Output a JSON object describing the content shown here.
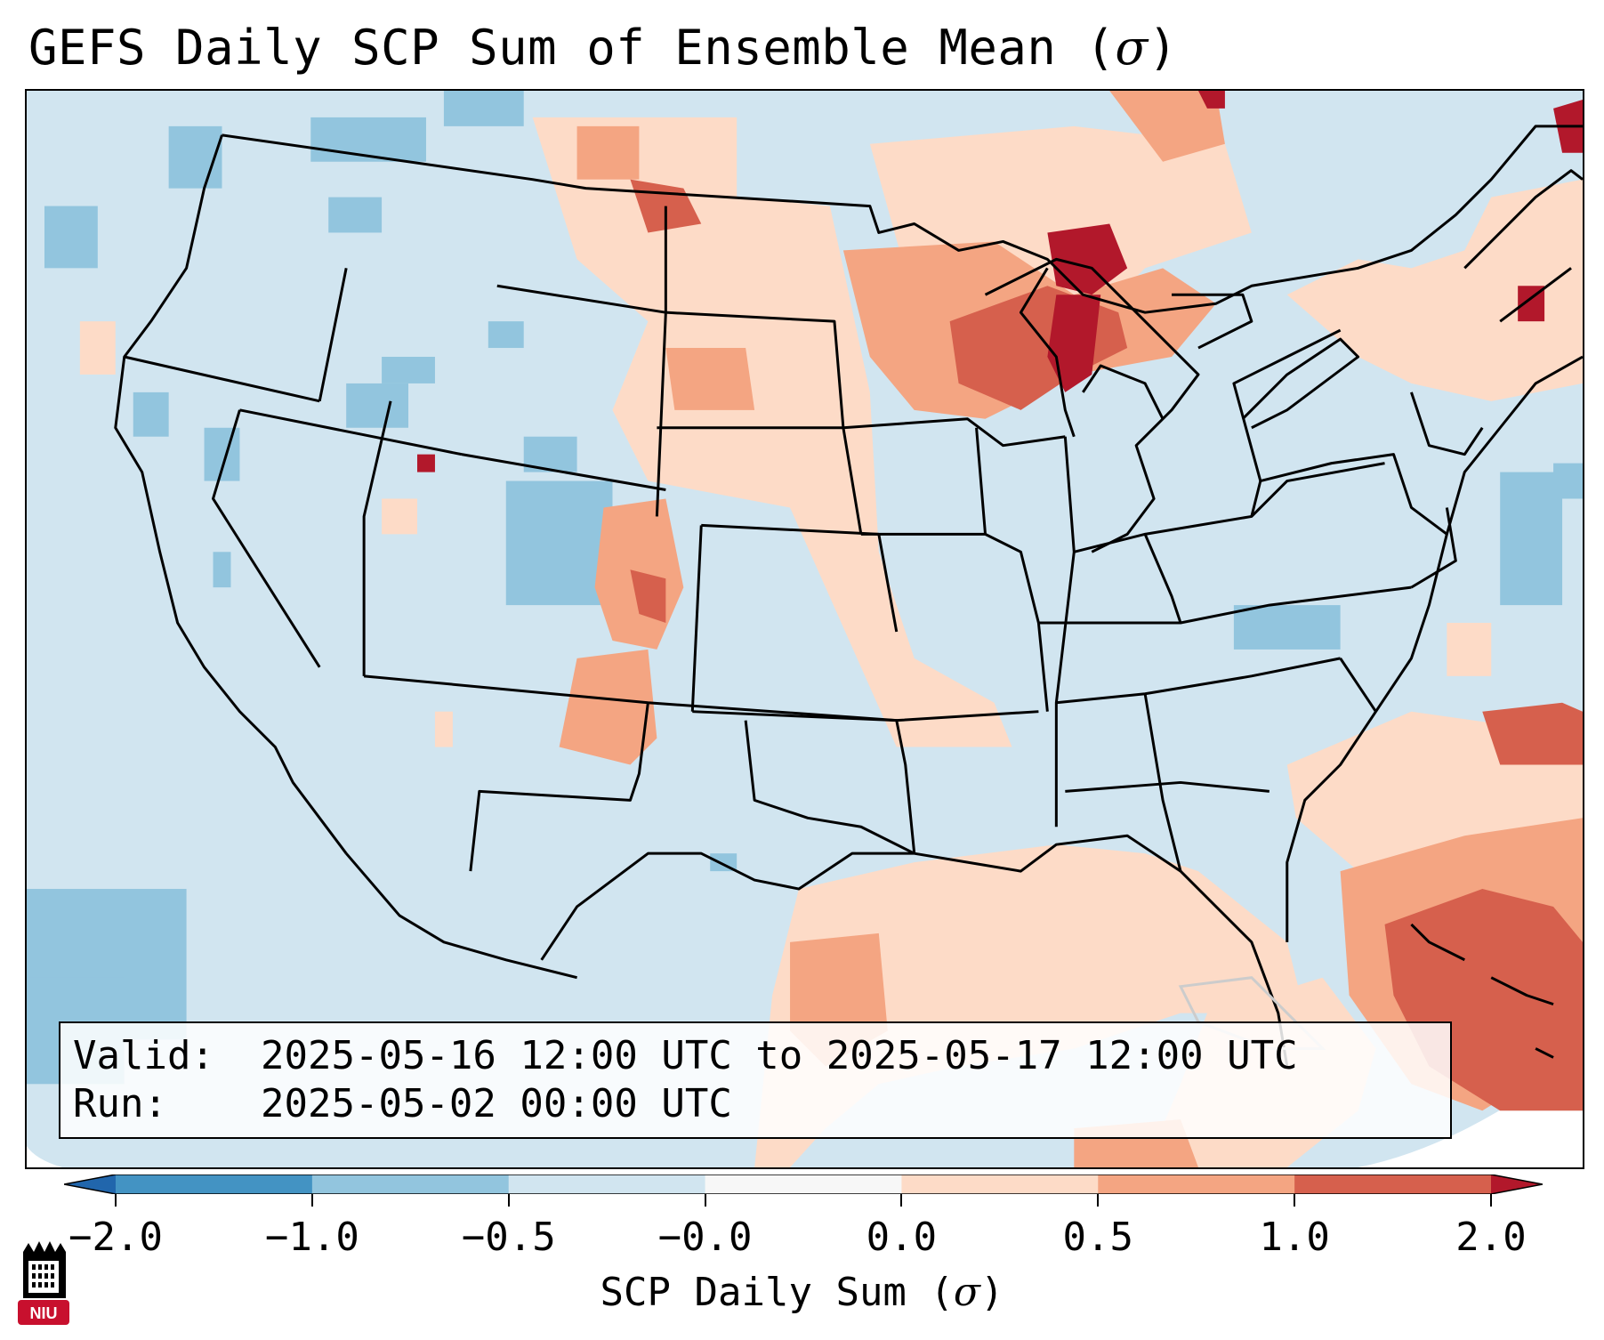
{
  "title": {
    "text": "GEFS Daily SCP Sum of Ensemble Mean (",
    "symbol": "σ",
    "close": ")"
  },
  "info": {
    "valid_key": "Valid:",
    "valid_value": "2025-05-16 12:00 UTC to 2025-05-17 12:00 UTC",
    "run_key": "Run:",
    "run_value": "2025-05-02 00:00 UTC"
  },
  "colorbar": {
    "label_text": "SCP Daily Sum (",
    "label_symbol": "σ",
    "label_close": ")",
    "ticks": [
      "−2.0",
      "−1.0",
      "−0.5",
      "−0.0",
      "0.0",
      "0.5",
      "1.0",
      "2.0"
    ],
    "bins": [
      {
        "from": "-inf",
        "to": -2.0,
        "color": "#2166ac"
      },
      {
        "from": -2.0,
        "to": -1.0,
        "color": "#4393c3"
      },
      {
        "from": -1.0,
        "to": -0.5,
        "color": "#92c5de"
      },
      {
        "from": -0.5,
        "to": -0.0,
        "color": "#d1e5f0"
      },
      {
        "from": -0.0,
        "to": 0.0,
        "color": "#f7f7f7"
      },
      {
        "from": 0.0,
        "to": 0.5,
        "color": "#fddbc7"
      },
      {
        "from": 0.5,
        "to": 1.0,
        "color": "#f4a582"
      },
      {
        "from": 1.0,
        "to": 2.0,
        "color": "#d6604d"
      },
      {
        "from": 2.0,
        "to": "inf",
        "color": "#b2182b"
      }
    ]
  },
  "map": {
    "background_color": "#d1e5f0",
    "anomaly_colors": {
      "weak_positive": "#fddbc7",
      "moderate_positive": "#f4a582",
      "strong_positive": "#d6604d",
      "extreme_positive": "#b2182b",
      "weak_negative": "#92c5de"
    }
  },
  "logo": {
    "text": "NIU",
    "color": "#c8102e"
  }
}
